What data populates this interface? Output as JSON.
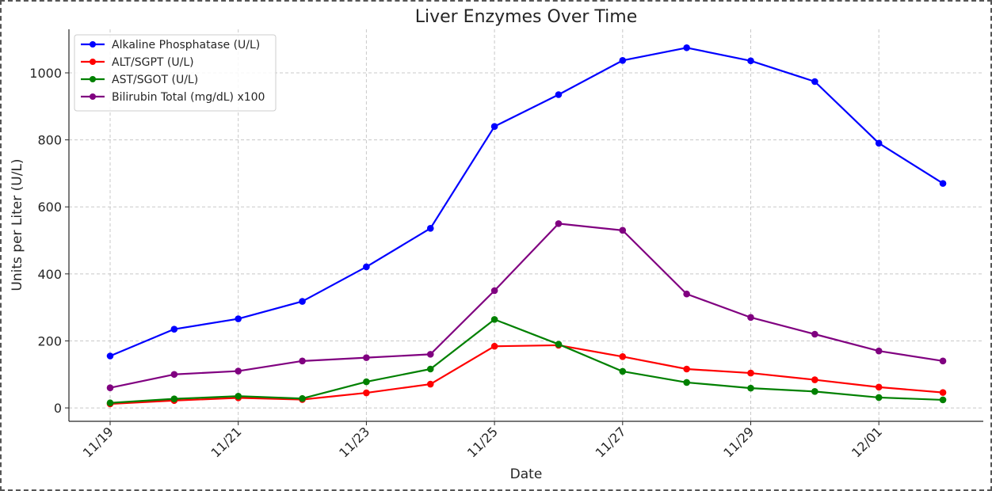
{
  "chart_data": {
    "type": "line",
    "title": "Liver Enzymes Over Time",
    "xlabel": "Date",
    "ylabel": "Units per Liter (U/L)",
    "x": [
      "11/19",
      "11/20",
      "11/21",
      "11/22",
      "11/23",
      "11/24",
      "11/25",
      "11/26",
      "11/27",
      "11/28",
      "11/29",
      "11/30",
      "12/01",
      "12/02"
    ],
    "x_tick_labels": [
      "11/19",
      "11/21",
      "11/23",
      "11/25",
      "11/27",
      "11/29",
      "12/01"
    ],
    "y_ticks": [
      0,
      200,
      400,
      600,
      800,
      1000
    ],
    "ylim": [
      -40,
      1130
    ],
    "grid": true,
    "legend_position": "top-left",
    "series": [
      {
        "name": "Alkaline Phosphatase (U/L)",
        "color": "#0000ff",
        "values": [
          155,
          235,
          266,
          318,
          421,
          536,
          840,
          935,
          1037,
          1075,
          1036,
          974,
          790,
          670
        ]
      },
      {
        "name": "ALT/SGPT (U/L)",
        "color": "#ff0000",
        "values": [
          12,
          22,
          30,
          25,
          45,
          71,
          184,
          187,
          153,
          116,
          104,
          84,
          62,
          46
        ]
      },
      {
        "name": "AST/SGOT (U/L)",
        "color": "#008000",
        "values": [
          15,
          27,
          35,
          28,
          78,
          116,
          264,
          190,
          109,
          76,
          59,
          49,
          31,
          24
        ]
      },
      {
        "name": "Bilirubin Total (mg/dL) x100",
        "color": "#800080",
        "values": [
          60,
          100,
          110,
          140,
          150,
          160,
          350,
          550,
          530,
          340,
          270,
          220,
          170,
          140
        ]
      }
    ]
  }
}
